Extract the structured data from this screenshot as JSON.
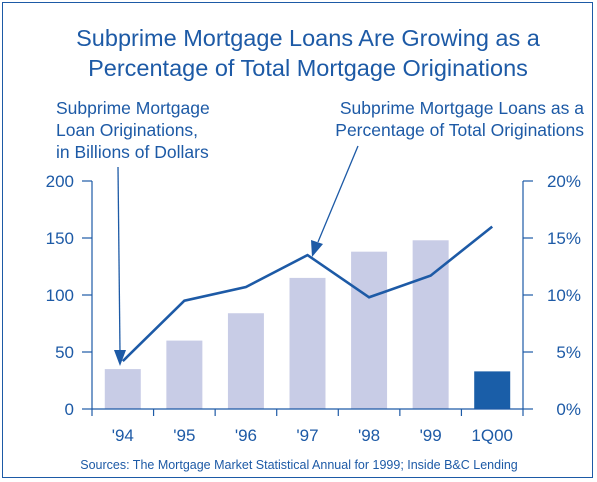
{
  "chart_data": {
    "type": "bar+line",
    "title_lines": [
      "Subprime Mortgage Loans Are Growing as a",
      "Percentage of Total Mortgage Originations"
    ],
    "categories": [
      "'94",
      "'95",
      "'96",
      "'97",
      "'98",
      "'99",
      "1Q00"
    ],
    "bar_series": {
      "label_lines": [
        "Subprime Mortgage",
        "Loan Originations,",
        "in Billions of Dollars"
      ],
      "values": [
        35,
        60,
        84,
        115,
        138,
        148,
        33
      ],
      "colors": [
        "#c8cce6",
        "#c8cce6",
        "#c8cce6",
        "#c8cce6",
        "#c8cce6",
        "#c8cce6",
        "#1a5ea8"
      ]
    },
    "line_series": {
      "label_lines": [
        "Subprime Mortgage Loans as a",
        "Percentage of Total Originations"
      ],
      "values": [
        4.2,
        9.5,
        10.7,
        13.5,
        9.8,
        11.7,
        16.0
      ],
      "color": "#1d5aa6"
    },
    "left_axis": {
      "min": 0,
      "max": 200,
      "ticks": [
        0,
        50,
        100,
        150,
        200
      ],
      "tick_labels": [
        "0",
        "50",
        "100",
        "150",
        "200"
      ]
    },
    "right_axis": {
      "min": 0,
      "max": 20,
      "ticks": [
        0,
        5,
        10,
        15,
        20
      ],
      "tick_labels": [
        "0%",
        "5%",
        "10%",
        "15%",
        "20%"
      ]
    },
    "source": "Sources: The Mortgage Market Statistical Annual for 1999; Inside B&C Lending"
  }
}
